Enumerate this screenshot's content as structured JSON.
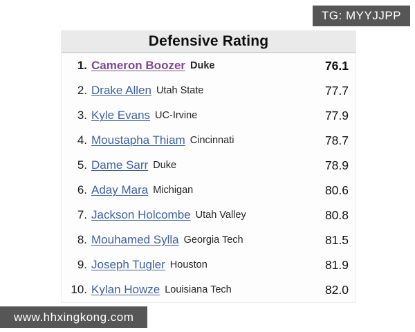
{
  "badges": {
    "top_right": "TG: MYYJJPP",
    "bottom_left": "www.hhxingkong.com"
  },
  "table": {
    "title": "Defensive Rating",
    "columns": [
      "rank",
      "player",
      "school",
      "rating"
    ],
    "rows": [
      {
        "rank": "1.",
        "player": "Cameron Boozer",
        "school": "Duke",
        "rating": "76.1",
        "visited": true,
        "bold": true
      },
      {
        "rank": "2.",
        "player": "Drake Allen",
        "school": "Utah State",
        "rating": "77.7"
      },
      {
        "rank": "3.",
        "player": "Kyle Evans",
        "school": "UC-Irvine",
        "rating": "77.9"
      },
      {
        "rank": "4.",
        "player": "Moustapha Thiam",
        "school": "Cincinnati",
        "rating": "78.7"
      },
      {
        "rank": "5.",
        "player": "Dame Sarr",
        "school": "Duke",
        "rating": "78.9"
      },
      {
        "rank": "6.",
        "player": "Aday Mara",
        "school": "Michigan",
        "rating": "80.6"
      },
      {
        "rank": "7.",
        "player": "Jackson Holcombe",
        "school": "Utah Valley",
        "rating": "80.8"
      },
      {
        "rank": "8.",
        "player": "Mouhamed Sylla",
        "school": "Georgia Tech",
        "rating": "81.5"
      },
      {
        "rank": "9.",
        "player": "Joseph Tugler",
        "school": "Houston",
        "rating": "81.9"
      },
      {
        "rank": "10.",
        "player": "Kylan Howze",
        "school": "Louisiana Tech",
        "rating": "82.0"
      }
    ]
  },
  "colors": {
    "badge_bg": "#565656",
    "header_bg": "#eaeaea",
    "link_blue": "#3e62a0",
    "link_visited_purple": "#7d4a8d"
  }
}
